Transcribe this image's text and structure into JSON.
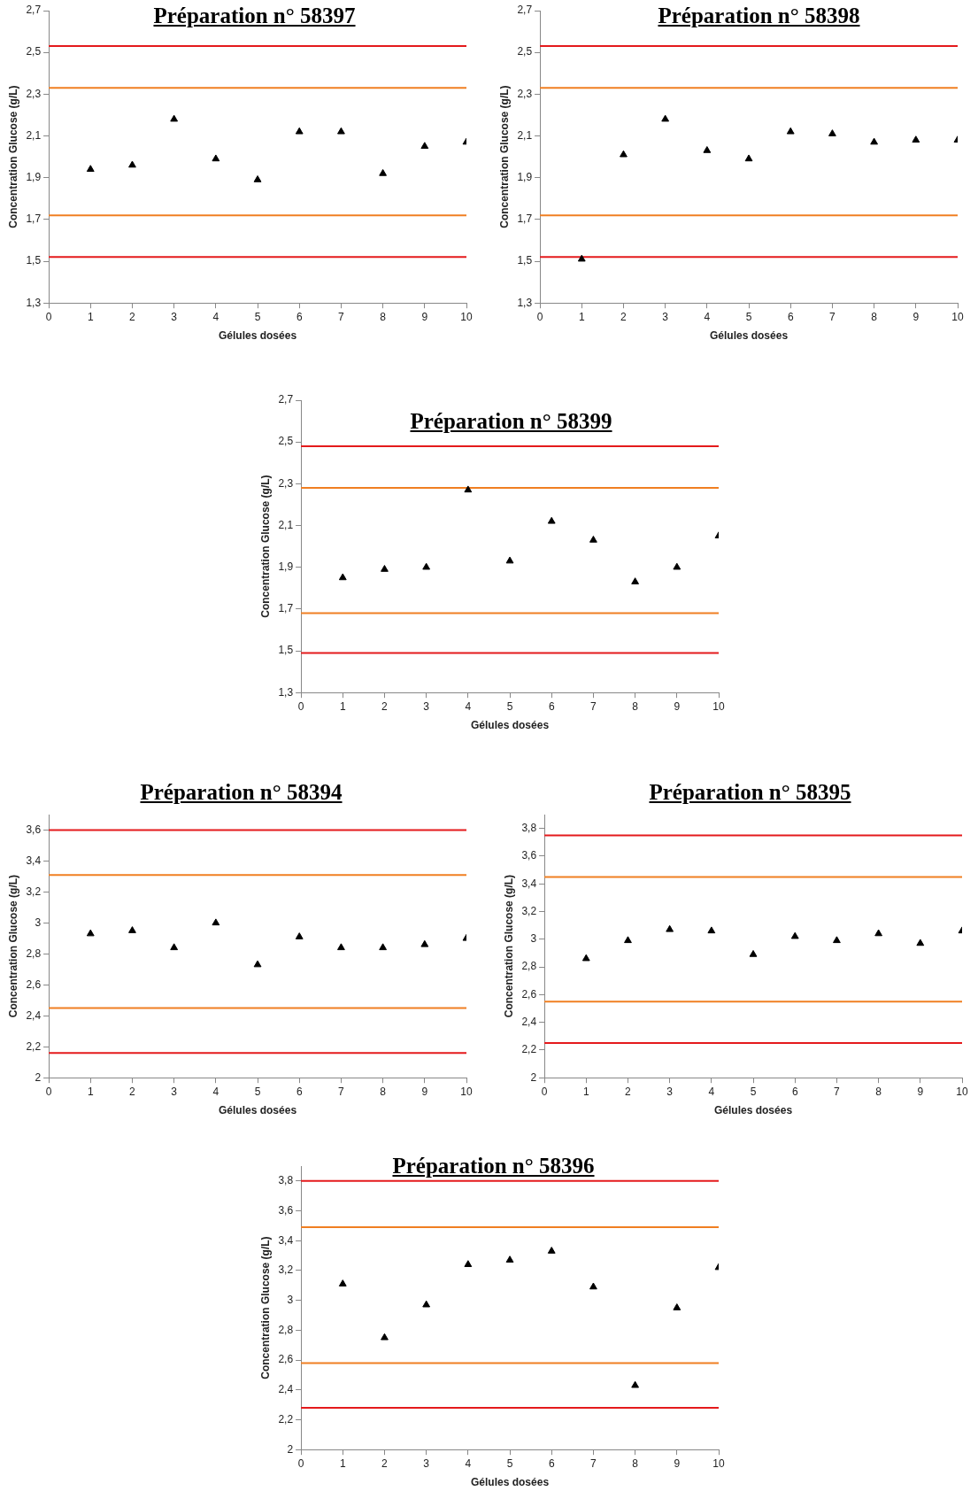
{
  "chart_data": [
    {
      "type": "scatter",
      "title": "Préparation n° 58397",
      "xlabel": "Gélules dosées",
      "ylabel": "Concentration Glucose (g/L)",
      "marker": "triangle",
      "grid": false,
      "legend": false,
      "x": [
        1,
        2,
        3,
        4,
        5,
        6,
        7,
        8,
        9,
        10
      ],
      "series": [
        {
          "color": "#000000",
          "values": [
            1.94,
            1.96,
            2.18,
            1.99,
            1.89,
            2.12,
            2.12,
            1.92,
            2.05,
            2.07
          ]
        }
      ],
      "xlim": [
        0,
        10
      ],
      "xticks": [
        0,
        1,
        2,
        3,
        4,
        5,
        6,
        7,
        8,
        9,
        10
      ],
      "ylim": [
        1.3,
        2.7
      ],
      "yticks": [
        {
          "value": 1.3,
          "label": "1,3"
        },
        {
          "value": 1.5,
          "label": "1,5"
        },
        {
          "value": 1.7,
          "label": "1,7"
        },
        {
          "value": 1.9,
          "label": "1,9"
        },
        {
          "value": 2.1,
          "label": "2,1"
        },
        {
          "value": 2.3,
          "label": "2,3"
        },
        {
          "value": 2.5,
          "label": "2,5"
        },
        {
          "value": 2.7,
          "label": "2,7"
        }
      ],
      "ref_lines": [
        {
          "axis": "y",
          "value": 2.53,
          "color": "#e41a1c"
        },
        {
          "axis": "y",
          "value": 2.33,
          "color": "#f07f22"
        },
        {
          "axis": "y",
          "value": 1.72,
          "color": "#f07f22"
        },
        {
          "axis": "y",
          "value": 1.52,
          "color": "#e41a1c"
        }
      ]
    },
    {
      "type": "scatter",
      "title": "Préparation n° 58398",
      "xlabel": "Gélules dosées",
      "ylabel": "Concentration Glucose (g/L)",
      "marker": "triangle",
      "grid": false,
      "legend": false,
      "x": [
        1,
        2,
        3,
        4,
        5,
        6,
        7,
        8,
        9,
        10
      ],
      "series": [
        {
          "color": "#000000",
          "values": [
            1.51,
            2.01,
            2.18,
            2.03,
            1.99,
            2.12,
            2.11,
            2.07,
            2.08,
            2.08
          ]
        }
      ],
      "xlim": [
        0,
        10
      ],
      "xticks": [
        0,
        1,
        2,
        3,
        4,
        5,
        6,
        7,
        8,
        9,
        10
      ],
      "ylim": [
        1.3,
        2.7
      ],
      "yticks": [
        {
          "value": 1.3,
          "label": "1,3"
        },
        {
          "value": 1.5,
          "label": "1,5"
        },
        {
          "value": 1.7,
          "label": "1,7"
        },
        {
          "value": 1.9,
          "label": "1,9"
        },
        {
          "value": 2.1,
          "label": "2,1"
        },
        {
          "value": 2.3,
          "label": "2,3"
        },
        {
          "value": 2.5,
          "label": "2,5"
        },
        {
          "value": 2.7,
          "label": "2,7"
        }
      ],
      "ref_lines": [
        {
          "axis": "y",
          "value": 2.53,
          "color": "#e41a1c"
        },
        {
          "axis": "y",
          "value": 2.33,
          "color": "#f07f22"
        },
        {
          "axis": "y",
          "value": 1.72,
          "color": "#f07f22"
        },
        {
          "axis": "y",
          "value": 1.52,
          "color": "#e41a1c"
        }
      ]
    },
    {
      "type": "scatter",
      "title": "Préparation n° 58399",
      "xlabel": "Gélules dosées",
      "ylabel": "Concentration Glucose (g/L)",
      "marker": "triangle",
      "grid": false,
      "legend": false,
      "x": [
        1,
        2,
        3,
        4,
        5,
        6,
        7,
        8,
        9,
        10
      ],
      "series": [
        {
          "color": "#000000",
          "values": [
            1.85,
            1.89,
            1.9,
            2.27,
            1.93,
            2.12,
            2.03,
            1.83,
            1.9,
            2.05
          ]
        }
      ],
      "xlim": [
        0,
        10
      ],
      "xticks": [
        0,
        1,
        2,
        3,
        4,
        5,
        6,
        7,
        8,
        9,
        10
      ],
      "ylim": [
        1.3,
        2.7
      ],
      "yticks": [
        {
          "value": 1.3,
          "label": "1,3"
        },
        {
          "value": 1.5,
          "label": "1,5"
        },
        {
          "value": 1.7,
          "label": "1,7"
        },
        {
          "value": 1.9,
          "label": "1,9"
        },
        {
          "value": 2.1,
          "label": "2,1"
        },
        {
          "value": 2.3,
          "label": "2,3"
        },
        {
          "value": 2.5,
          "label": "2,5"
        },
        {
          "value": 2.7,
          "label": "2,7"
        }
      ],
      "ref_lines": [
        {
          "axis": "y",
          "value": 2.48,
          "color": "#e41a1c"
        },
        {
          "axis": "y",
          "value": 2.28,
          "color": "#f07f22"
        },
        {
          "axis": "y",
          "value": 1.68,
          "color": "#f07f22"
        },
        {
          "axis": "y",
          "value": 1.49,
          "color": "#e41a1c"
        }
      ]
    },
    {
      "type": "scatter",
      "title": "Préparation n° 58394",
      "xlabel": "Gélules dosées",
      "ylabel": "Concentration Glucose (g/L)",
      "marker": "triangle",
      "grid": false,
      "legend": false,
      "x": [
        1,
        2,
        3,
        4,
        5,
        6,
        7,
        8,
        9,
        10
      ],
      "series": [
        {
          "color": "#000000",
          "values": [
            2.93,
            2.95,
            2.84,
            3.0,
            2.73,
            2.91,
            2.84,
            2.84,
            2.86,
            2.9
          ]
        }
      ],
      "xlim": [
        0,
        10
      ],
      "xticks": [
        0,
        1,
        2,
        3,
        4,
        5,
        6,
        7,
        8,
        9,
        10
      ],
      "ylim": [
        2,
        3.7
      ],
      "yticks": [
        {
          "value": 2,
          "label": "2"
        },
        {
          "value": 2.2,
          "label": "2,2"
        },
        {
          "value": 2.4,
          "label": "2,4"
        },
        {
          "value": 2.6,
          "label": "2,6"
        },
        {
          "value": 2.8,
          "label": "2,8"
        },
        {
          "value": 3,
          "label": "3"
        },
        {
          "value": 3.2,
          "label": "3,2"
        },
        {
          "value": 3.4,
          "label": "3,4"
        },
        {
          "value": 3.6,
          "label": "3,6"
        }
      ],
      "ref_lines": [
        {
          "axis": "y",
          "value": 3.6,
          "color": "#e41a1c"
        },
        {
          "axis": "y",
          "value": 3.31,
          "color": "#f07f22"
        },
        {
          "axis": "y",
          "value": 2.45,
          "color": "#f07f22"
        },
        {
          "axis": "y",
          "value": 2.16,
          "color": "#e41a1c"
        }
      ]
    },
    {
      "type": "scatter",
      "title": "Préparation n° 58395",
      "xlabel": "Gélules dosées",
      "ylabel": "Concentration Glucose (g/L)",
      "marker": "triangle",
      "grid": false,
      "legend": false,
      "x": [
        1,
        2,
        3,
        4,
        5,
        6,
        7,
        8,
        9,
        10
      ],
      "series": [
        {
          "color": "#000000",
          "values": [
            2.86,
            2.99,
            3.07,
            3.06,
            2.89,
            3.02,
            2.99,
            3.04,
            2.97,
            3.06
          ]
        }
      ],
      "xlim": [
        0,
        10
      ],
      "xticks": [
        0,
        1,
        2,
        3,
        4,
        5,
        6,
        7,
        8,
        9,
        10
      ],
      "ylim": [
        2,
        3.9
      ],
      "yticks": [
        {
          "value": 2,
          "label": "2"
        },
        {
          "value": 2.2,
          "label": "2,2"
        },
        {
          "value": 2.4,
          "label": "2,4"
        },
        {
          "value": 2.6,
          "label": "2,6"
        },
        {
          "value": 2.8,
          "label": "2,8"
        },
        {
          "value": 3,
          "label": "3"
        },
        {
          "value": 3.2,
          "label": "3,2"
        },
        {
          "value": 3.4,
          "label": "3,4"
        },
        {
          "value": 3.6,
          "label": "3,6"
        },
        {
          "value": 3.8,
          "label": "3,8"
        }
      ],
      "ref_lines": [
        {
          "axis": "y",
          "value": 3.75,
          "color": "#e41a1c"
        },
        {
          "axis": "y",
          "value": 3.45,
          "color": "#f07f22"
        },
        {
          "axis": "y",
          "value": 2.55,
          "color": "#f07f22"
        },
        {
          "axis": "y",
          "value": 2.25,
          "color": "#e41a1c"
        }
      ]
    },
    {
      "type": "scatter",
      "title": "Préparation n° 58396",
      "xlabel": "Gélules dosées",
      "ylabel": "Concentration Glucose (g/L)",
      "marker": "triangle",
      "grid": false,
      "legend": false,
      "x": [
        1,
        2,
        3,
        4,
        5,
        6,
        7,
        8,
        9,
        10
      ],
      "series": [
        {
          "color": "#000000",
          "values": [
            3.11,
            2.75,
            2.97,
            3.24,
            3.27,
            3.33,
            3.09,
            2.43,
            2.95,
            3.22
          ]
        }
      ],
      "xlim": [
        0,
        10
      ],
      "xticks": [
        0,
        1,
        2,
        3,
        4,
        5,
        6,
        7,
        8,
        9,
        10
      ],
      "ylim": [
        2,
        3.9
      ],
      "yticks": [
        {
          "value": 2,
          "label": "2"
        },
        {
          "value": 2.2,
          "label": "2,2"
        },
        {
          "value": 2.4,
          "label": "2,4"
        },
        {
          "value": 2.6,
          "label": "2,6"
        },
        {
          "value": 2.8,
          "label": "2,8"
        },
        {
          "value": 3,
          "label": "3"
        },
        {
          "value": 3.2,
          "label": "3,2"
        },
        {
          "value": 3.4,
          "label": "3,4"
        },
        {
          "value": 3.6,
          "label": "3,6"
        },
        {
          "value": 3.8,
          "label": "3,8"
        }
      ],
      "ref_lines": [
        {
          "axis": "y",
          "value": 3.8,
          "color": "#e41a1c"
        },
        {
          "axis": "y",
          "value": 3.49,
          "color": "#f07f22"
        },
        {
          "axis": "y",
          "value": 2.58,
          "color": "#f07f22"
        },
        {
          "axis": "y",
          "value": 2.28,
          "color": "#e41a1c"
        }
      ]
    }
  ]
}
